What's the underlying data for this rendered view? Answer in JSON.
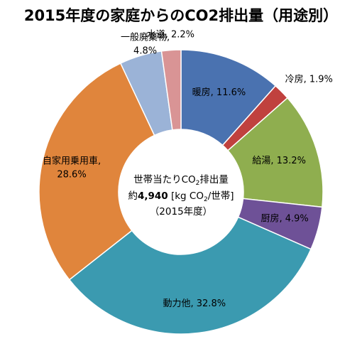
{
  "chart_data": {
    "type": "pie",
    "title": "2015年度の家庭からのCO2排出量（用途別）",
    "categories": [
      "暖房",
      "冷房",
      "給湯",
      "厨房",
      "動力他",
      "自家用乗用車",
      "一般廃棄物",
      "水道"
    ],
    "values": [
      11.6,
      1.9,
      13.2,
      4.9,
      32.8,
      28.6,
      4.8,
      2.2
    ],
    "unit": "%",
    "colors": [
      "#4a72b0",
      "#c0413e",
      "#8fae4f",
      "#6e5197",
      "#3b9ab0",
      "#e0853c",
      "#9bb3d7",
      "#d99495"
    ],
    "labels": [
      "暖房, 11.6%",
      "冷房, 1.9%",
      "給湯, 13.2%",
      "厨房, 4.9%",
      "動力他, 32.8%",
      "自家用乗用車,|28.6%",
      "一般廃棄物,|4.8%",
      "水道, 2.2%"
    ],
    "center": {
      "line1_prefix": "世帯当たりCO",
      "line1_sub": "2",
      "line1_suffix": "排出量",
      "line2_prefix": "約",
      "line2_value": "4,940",
      "line2_unit_open": " [kg CO",
      "line2_unit_sub": "2",
      "line2_unit_close": "/世帯]",
      "line3": "（2015年度）"
    }
  }
}
